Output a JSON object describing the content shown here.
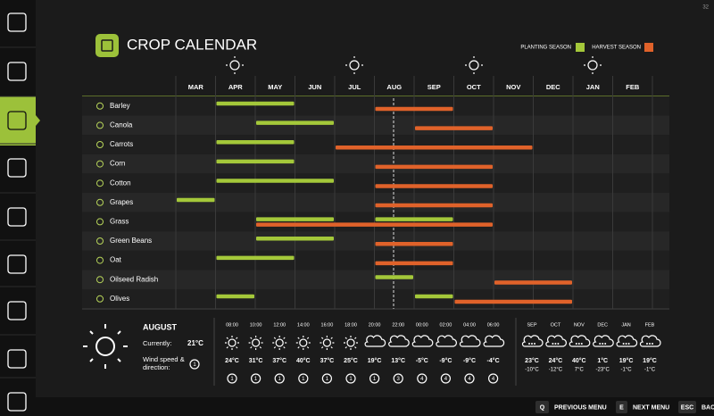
{
  "corner": "32",
  "header": {
    "title": "CROP CALENDAR",
    "legend": {
      "planting": "PLANTING SEASON",
      "harvest": "HARVEST SEASON"
    }
  },
  "calendar": {
    "months": [
      "MAR",
      "APR",
      "MAY",
      "JUN",
      "JUL",
      "AUG",
      "SEP",
      "OCT",
      "NOV",
      "DEC",
      "JAN",
      "FEB"
    ],
    "crops": [
      {
        "name": "Barley",
        "planting": [
          [
            "APR",
            "MAY"
          ]
        ],
        "harvest": [
          [
            "AUG",
            "SEP"
          ]
        ]
      },
      {
        "name": "Canola",
        "planting": [
          [
            "MAY",
            "JUN"
          ]
        ],
        "harvest": [
          [
            "SEP",
            "OCT"
          ]
        ]
      },
      {
        "name": "Carrots",
        "planting": [
          [
            "APR",
            "MAY"
          ]
        ],
        "harvest": [
          [
            "JUL",
            "NOV"
          ]
        ]
      },
      {
        "name": "Corn",
        "planting": [
          [
            "APR",
            "MAY"
          ]
        ],
        "harvest": [
          [
            "AUG",
            "OCT"
          ]
        ]
      },
      {
        "name": "Cotton",
        "planting": [
          [
            "APR",
            "JUN"
          ]
        ],
        "harvest": [
          [
            "AUG",
            "OCT"
          ]
        ]
      },
      {
        "name": "Grapes",
        "planting": [
          [
            "MAR",
            "MAR"
          ]
        ],
        "harvest": [
          [
            "AUG",
            "OCT"
          ]
        ]
      },
      {
        "name": "Grass",
        "planting": [
          [
            "MAY",
            "JUN"
          ],
          [
            "AUG",
            "SEP"
          ]
        ],
        "harvest": [
          [
            "MAY",
            "OCT"
          ]
        ]
      },
      {
        "name": "Green Beans",
        "planting": [
          [
            "MAY",
            "JUN"
          ]
        ],
        "harvest": [
          [
            "AUG",
            "SEP"
          ]
        ]
      },
      {
        "name": "Oat",
        "planting": [
          [
            "APR",
            "MAY"
          ]
        ],
        "harvest": [
          [
            "AUG",
            "SEP"
          ]
        ]
      },
      {
        "name": "Oilseed Radish",
        "planting": [
          [
            "AUG",
            "AUG"
          ]
        ],
        "harvest": [
          [
            "NOV",
            "DEC"
          ]
        ]
      },
      {
        "name": "Olives",
        "planting": [
          [
            "APR",
            "APR"
          ],
          [
            "SEP",
            "SEP"
          ]
        ],
        "harvest": [
          [
            "OCT",
            "DEC"
          ]
        ]
      }
    ]
  },
  "weather": {
    "month": "AUGUST",
    "current_label": "Currently:",
    "current_temp": "21°C",
    "wind_label": "Wind speed & direction:",
    "current_wind": "1",
    "hourly": [
      {
        "time": "08:00",
        "temp": "24°C",
        "wind": "1"
      },
      {
        "time": "10:00",
        "temp": "31°C",
        "wind": "1"
      },
      {
        "time": "12:00",
        "temp": "37°C",
        "wind": "1"
      },
      {
        "time": "14:00",
        "temp": "40°C",
        "wind": "1"
      },
      {
        "time": "16:00",
        "temp": "37°C",
        "wind": "1"
      },
      {
        "time": "18:00",
        "temp": "25°C",
        "wind": "1"
      },
      {
        "time": "20:00",
        "temp": "19°C",
        "wind": "1"
      },
      {
        "time": "22:00",
        "temp": "13°C",
        "wind": "3"
      },
      {
        "time": "00:00",
        "temp": "-5°C",
        "wind": "4"
      },
      {
        "time": "02:00",
        "temp": "-9°C",
        "wind": "4"
      },
      {
        "time": "04:00",
        "temp": "-9°C",
        "wind": "4"
      },
      {
        "time": "06:00",
        "temp": "-4°C",
        "wind": "4"
      }
    ],
    "monthly": [
      {
        "month": "SEP",
        "high": "23°C",
        "low": "-10°C"
      },
      {
        "month": "OCT",
        "high": "24°C",
        "low": "-12°C"
      },
      {
        "month": "NOV",
        "high": "40°C",
        "low": "7°C"
      },
      {
        "month": "DEC",
        "high": "1°C",
        "low": "-23°C"
      },
      {
        "month": "JAN",
        "high": "19°C",
        "low": "-1°C"
      },
      {
        "month": "FEB",
        "high": "19°C",
        "low": "-1°C"
      }
    ]
  },
  "footer": [
    {
      "key": "Q",
      "label": "PREVIOUS MENU"
    },
    {
      "key": "E",
      "label": "NEXT MENU"
    },
    {
      "key": "ESC",
      "label": "BACK"
    }
  ]
}
